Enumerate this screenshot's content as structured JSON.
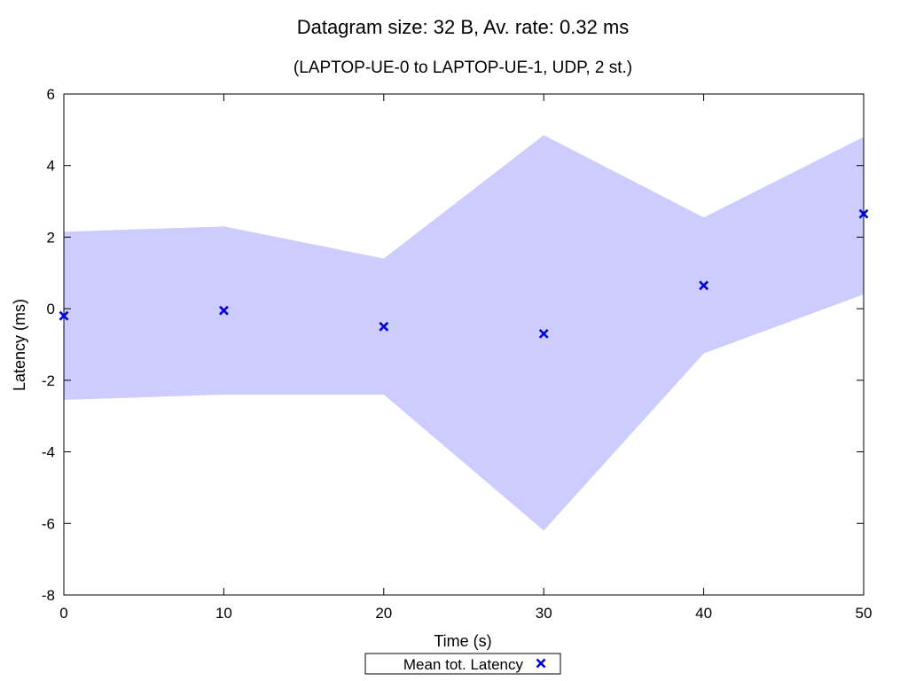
{
  "chart_data": {
    "type": "scatter",
    "title": "Datagram size: 32 B, Av. rate: 0.32 ms",
    "subtitle": "(LAPTOP-UE-0 to LAPTOP-UE-1, UDP, 2 st.)",
    "xlabel": "Time (s)",
    "ylabel": "Latency (ms)",
    "xlim": [
      0,
      50
    ],
    "ylim": [
      -8,
      6
    ],
    "xticks": [
      "0",
      "10",
      "20",
      "30",
      "40",
      "50"
    ],
    "yticks": [
      "-8",
      "-6",
      "-4",
      "-2",
      "0",
      "2",
      "4",
      "6"
    ],
    "grid": false,
    "legend": "bottom-center",
    "series": [
      {
        "name": "Mean tot. Latency",
        "marker": "x",
        "color": "#0000dd",
        "x": [
          0,
          10,
          20,
          30,
          40,
          50
        ],
        "y": [
          -0.2,
          -0.05,
          -0.5,
          -0.7,
          0.65,
          2.65
        ]
      }
    ],
    "band": {
      "color": "#ccccff",
      "x": [
        0,
        10,
        20,
        30,
        40,
        50
      ],
      "upper": [
        2.15,
        2.3,
        1.4,
        4.85,
        2.55,
        4.8
      ],
      "lower": [
        -2.55,
        -2.4,
        -2.4,
        -6.2,
        -1.25,
        0.4
      ]
    }
  }
}
